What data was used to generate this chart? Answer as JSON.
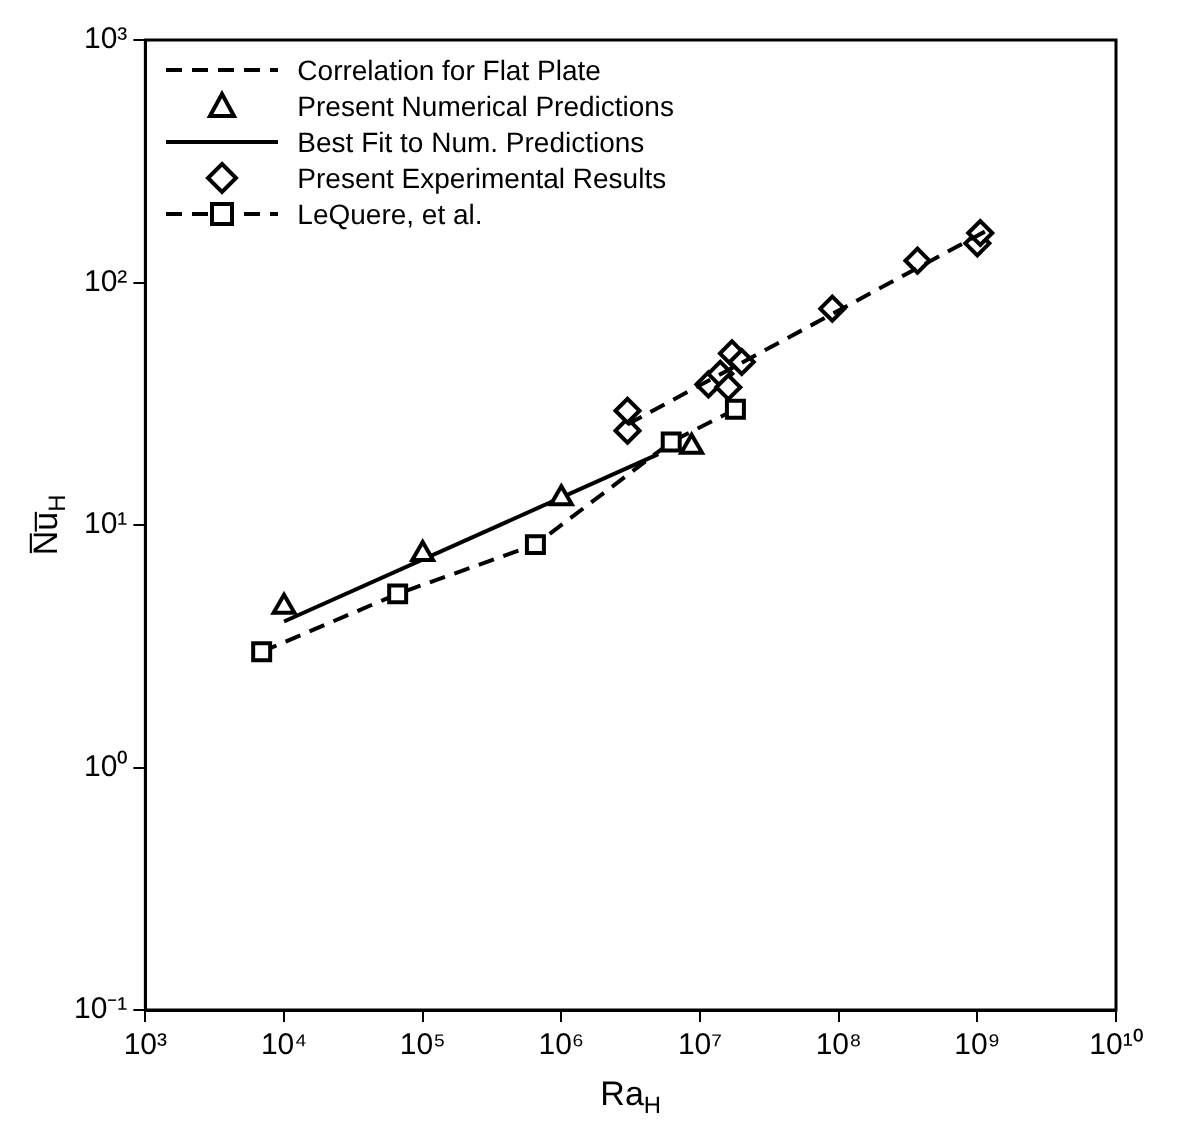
{
  "chart_data": {
    "type": "line",
    "xlabel": "Ra$_{H}$",
    "ylabel": "N̅u̅$_{H}$",
    "log": "xy",
    "grid": false,
    "legend": "top left",
    "xlim": [
      1000,
      10000000000
    ],
    "xticks": [
      {
        "value": 1000,
        "label": "10³"
      },
      {
        "value": 10000,
        "label": "10⁴"
      },
      {
        "value": 100000,
        "label": "10⁵"
      },
      {
        "value": 1000000,
        "label": "10⁶"
      },
      {
        "value": 10000000,
        "label": "10⁷"
      },
      {
        "value": 100000000,
        "label": "10⁸"
      },
      {
        "value": 1000000000,
        "label": "10⁹"
      },
      {
        "value": 10000000000,
        "label": "10¹⁰"
      }
    ],
    "ylim": [
      0.1,
      1000
    ],
    "yticks": [
      {
        "value": 0.1,
        "label": "10⁻¹"
      },
      {
        "value": 1,
        "label": "10⁰"
      },
      {
        "value": 10,
        "label": "10¹"
      },
      {
        "value": 100,
        "label": "10²"
      },
      {
        "value": 1000,
        "label": "10³"
      }
    ],
    "series": [
      {
        "name": "Correlation for Flat Plate",
        "type": "line",
        "color": "#000000",
        "line_style": "dashed",
        "marker": "none",
        "x": [
          3000000,
          1200000000
        ],
        "values": [
          26,
          165
        ]
      },
      {
        "name": "Present Numerical Predictions",
        "type": "scatter",
        "color": "#000000",
        "marker": "triangle",
        "x": [
          10000,
          100000,
          1000000,
          8700000
        ],
        "values": [
          4.6,
          7.6,
          12.9,
          21
        ]
      },
      {
        "name": "Best Fit to Num. Predictions",
        "type": "line",
        "color": "#000000",
        "line_style": "solid",
        "marker": "none",
        "x": [
          10000,
          5000000
        ],
        "values": [
          4.0,
          19.6
        ]
      },
      {
        "name": "Present Experimental Results",
        "type": "scatter",
        "color": "#000000",
        "marker": "diamond",
        "x": [
          3000000,
          3000000,
          11500000,
          14000000,
          16000000,
          17000000,
          20000000,
          90000000,
          370000000,
          1000000000,
          1050000000
        ],
        "values": [
          24.5,
          29.6,
          38,
          42,
          37,
          51,
          47,
          78,
          123,
          145,
          160
        ]
      },
      {
        "name": "LeQuere, et al.",
        "type": "line",
        "color": "#000000",
        "line_style": "dashed",
        "marker": "square",
        "x": [
          6900,
          66000,
          650000,
          6200000,
          18000000
        ],
        "values": [
          3.0,
          5.2,
          8.3,
          22,
          30
        ]
      }
    ]
  }
}
